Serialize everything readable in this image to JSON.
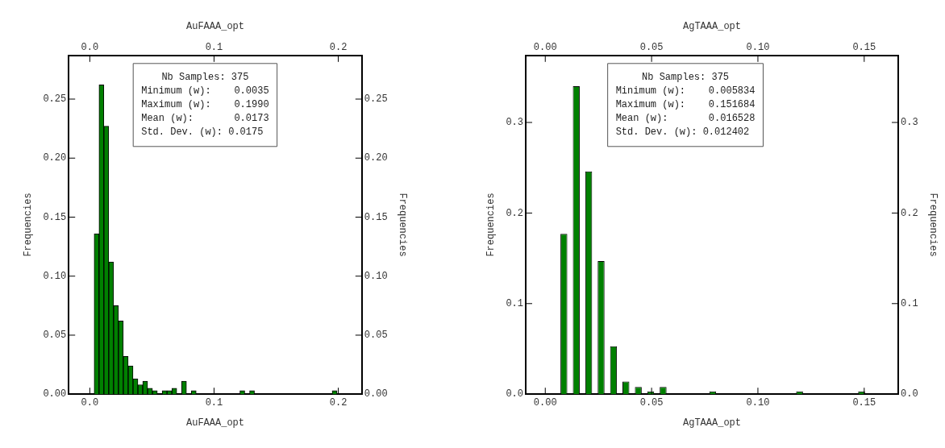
{
  "chart_data": [
    {
      "type": "histogram",
      "xlabel": "AuFAAA_opt",
      "x2label": "AuFAAA_opt",
      "ylabel": "Frequencies",
      "y2label": "Frequencies",
      "color": "#008000",
      "grid": false,
      "legend": false,
      "bins": [
        0.0035,
        0.00741,
        0.01132,
        0.01523,
        0.01914,
        0.02305,
        0.02696,
        0.03087,
        0.03478,
        0.03869,
        0.0426,
        0.04651,
        0.05042,
        0.05433,
        0.05824,
        0.06215,
        0.06606,
        0.06997,
        0.07388,
        0.07779,
        0.0817,
        0.08561,
        0.08952,
        0.09343,
        0.09734,
        0.10125,
        0.10516,
        0.10907,
        0.11298,
        0.11689,
        0.1208,
        0.12471,
        0.12862,
        0.13253,
        0.13644,
        0.14035,
        0.14426,
        0.14817,
        0.15208,
        0.15599,
        0.1599,
        0.16381,
        0.16772,
        0.17163,
        0.17554,
        0.17945,
        0.18336,
        0.18727,
        0.19118,
        0.19509,
        0.199
      ],
      "values": [
        0.136,
        0.262,
        0.227,
        0.112,
        0.075,
        0.062,
        0.032,
        0.024,
        0.013,
        0.008,
        0.011,
        0.005,
        0.003,
        0,
        0.003,
        0.003,
        0.005,
        0,
        0.011,
        0,
        0.003,
        0,
        0,
        0,
        0,
        0,
        0,
        0,
        0,
        0,
        0.003,
        0,
        0.003,
        0,
        0,
        0,
        0,
        0,
        0,
        0,
        0,
        0,
        0,
        0,
        0,
        0,
        0,
        0,
        0,
        0.003
      ],
      "xlim": [
        -0.017,
        0.219
      ],
      "xticks": [
        {
          "value": 0,
          "label": "0.0"
        },
        {
          "value": 0.1,
          "label": "0.1"
        },
        {
          "value": 0.2,
          "label": "0.2"
        }
      ],
      "x2lim": [
        -0.017,
        0.219
      ],
      "x2ticks": [
        {
          "value": 0,
          "label": "0.0"
        },
        {
          "value": 0.1,
          "label": "0.1"
        },
        {
          "value": 0.2,
          "label": "0.2"
        }
      ],
      "ylim": [
        0,
        0.287
      ],
      "yticks": [
        {
          "value": 0,
          "label": "0.00"
        },
        {
          "value": 0.05,
          "label": "0.05"
        },
        {
          "value": 0.1,
          "label": "0.10"
        },
        {
          "value": 0.15,
          "label": "0.15"
        },
        {
          "value": 0.2,
          "label": "0.20"
        },
        {
          "value": 0.25,
          "label": "0.25"
        }
      ],
      "y2lim": [
        0,
        0.287
      ],
      "y2ticks": [
        {
          "value": 0,
          "label": "0.00"
        },
        {
          "value": 0.05,
          "label": "0.05"
        },
        {
          "value": 0.1,
          "label": "0.10"
        },
        {
          "value": 0.15,
          "label": "0.15"
        },
        {
          "value": 0.2,
          "label": "0.20"
        },
        {
          "value": 0.25,
          "label": "0.25"
        }
      ],
      "annotations": [
        "Nb Samples: 375",
        "Minimum (w):    0.0035",
        "Maximum (w):    0.1990",
        "Mean (w):       0.0173",
        "Std. Dev. (w): 0.0175"
      ]
    },
    {
      "type": "histogram",
      "xlabel": "AgTAAA_opt",
      "x2label": "AgTAAA_opt",
      "ylabel": "Frequencies",
      "y2label": "Frequencies",
      "color": "#008000",
      "grid": false,
      "legend": false,
      "bins": [
        0.005834,
        0.011668,
        0.017502,
        0.023336,
        0.02917,
        0.035004,
        0.040838,
        0.046672,
        0.052506,
        0.05834,
        0.064174,
        0.070008,
        0.075842,
        0.081676,
        0.08751,
        0.093344,
        0.099178,
        0.105012,
        0.110846,
        0.11668,
        0.122514,
        0.128348,
        0.134182,
        0.140016,
        0.14585,
        0.151684
      ],
      "values": [
        0.177,
        0.34,
        0.246,
        0.147,
        0.053,
        0.014,
        0.008,
        0.003,
        0.008,
        0,
        0,
        0,
        0.003,
        0,
        0,
        0,
        0,
        0,
        0,
        0.003,
        0,
        0,
        0,
        0,
        0.003
      ],
      "xlim": [
        -0.0092,
        0.166
      ],
      "xticks": [
        {
          "value": 0,
          "label": "0.00"
        },
        {
          "value": 0.05,
          "label": "0.05"
        },
        {
          "value": 0.1,
          "label": "0.10"
        },
        {
          "value": 0.15,
          "label": "0.15"
        }
      ],
      "x2lim": [
        -0.0092,
        0.166
      ],
      "x2ticks": [
        {
          "value": 0,
          "label": "0.00"
        },
        {
          "value": 0.05,
          "label": "0.05"
        },
        {
          "value": 0.1,
          "label": "0.10"
        },
        {
          "value": 0.15,
          "label": "0.15"
        }
      ],
      "ylim": [
        0,
        0.374
      ],
      "yticks": [
        {
          "value": 0,
          "label": "0.0"
        },
        {
          "value": 0.1,
          "label": "0.1"
        },
        {
          "value": 0.2,
          "label": "0.2"
        },
        {
          "value": 0.3,
          "label": "0.3"
        }
      ],
      "y2lim": [
        0,
        0.374
      ],
      "y2ticks": [
        {
          "value": 0,
          "label": "0.0"
        },
        {
          "value": 0.1,
          "label": "0.1"
        },
        {
          "value": 0.2,
          "label": "0.2"
        },
        {
          "value": 0.3,
          "label": "0.3"
        }
      ],
      "annotations": [
        "Nb Samples: 375",
        "Minimum (w):    0.005834",
        "Maximum (w):    0.151684",
        "Mean (w):       0.016528",
        "Std. Dev. (w): 0.012402"
      ]
    }
  ]
}
